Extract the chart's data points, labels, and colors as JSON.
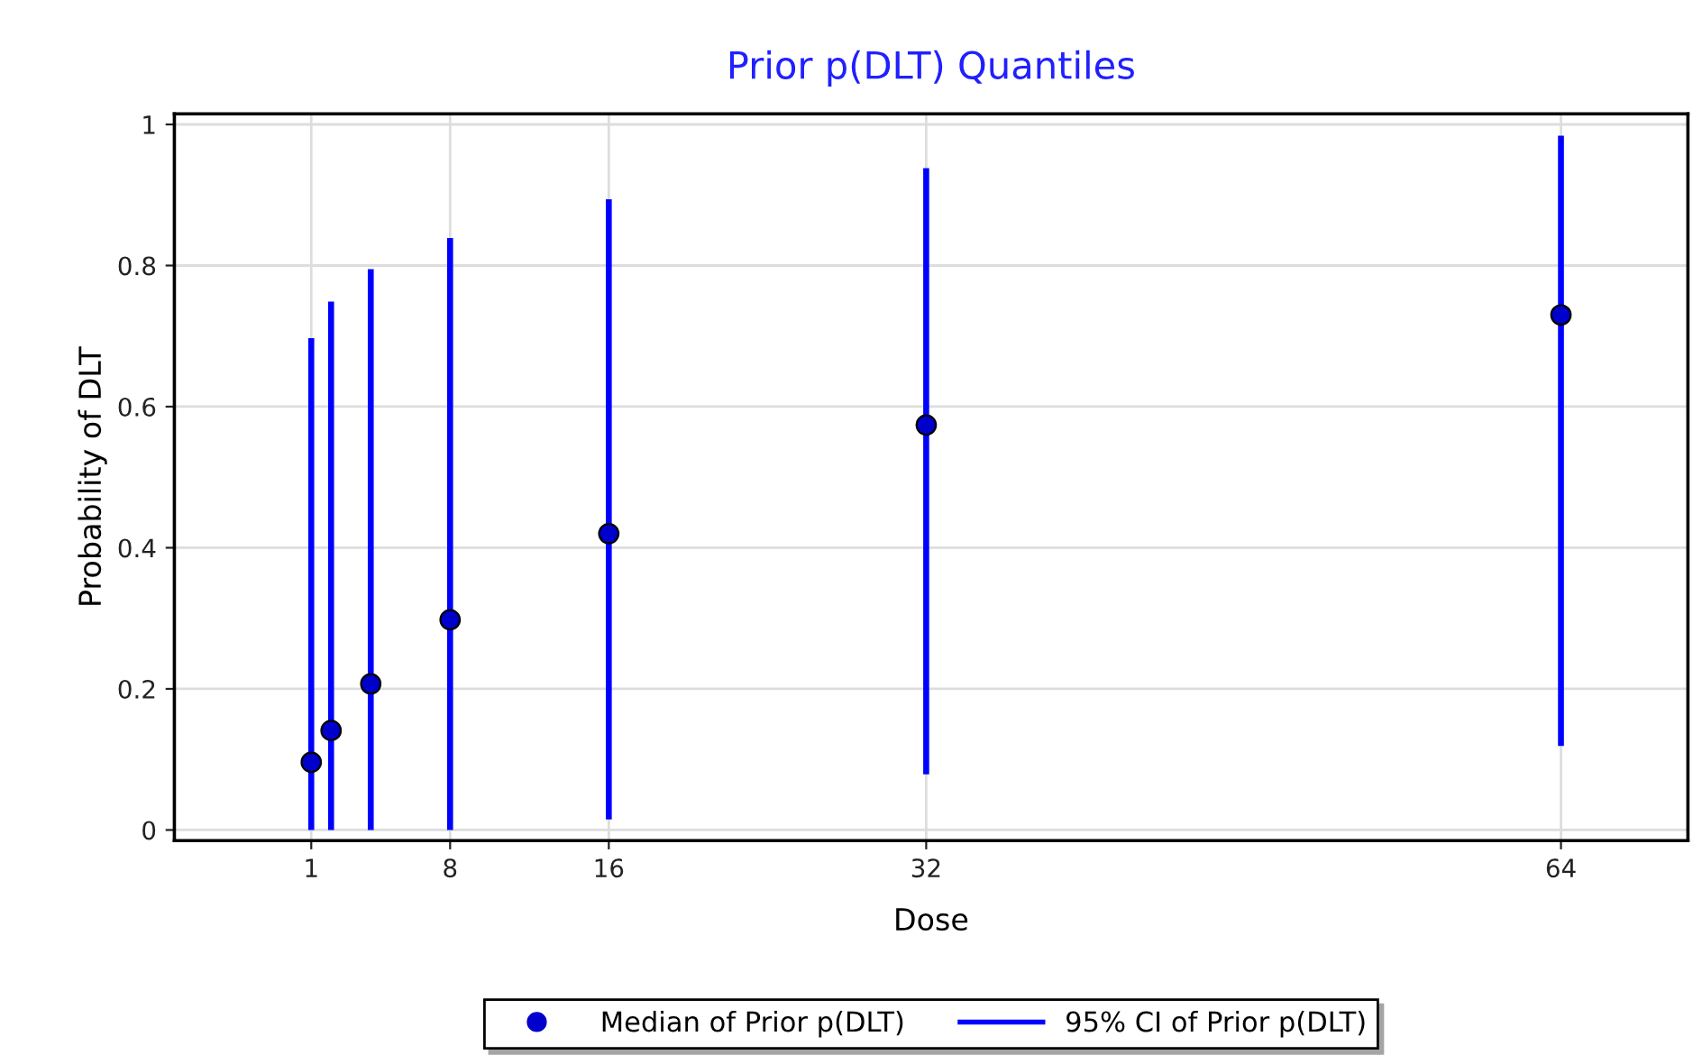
{
  "chart_data": {
    "type": "scatter",
    "title": "Prior p(DLT) Quantiles",
    "xlabel": "Dose",
    "ylabel": "Probability of DLT",
    "xlim": [
      -5.9,
      70.4
    ],
    "xticks": [
      1,
      8,
      16,
      32,
      64
    ],
    "ylim": [
      -0.015,
      1.015
    ],
    "yticks": [
      0,
      0.2,
      0.4,
      0.6,
      0.8,
      1
    ],
    "grid": true,
    "legend": "bottom",
    "series": [
      {
        "name": "95% CI of Prior p(DLT)",
        "type": "bar",
        "color": "#0000ff",
        "x": [
          1,
          2,
          4,
          8,
          16,
          32,
          64
        ],
        "base": [
          0,
          0,
          0,
          0,
          0.015,
          0.079,
          0.119
        ],
        "values": [
          0.697,
          0.749,
          0.795,
          0.839,
          0.879,
          0.859,
          0.865
        ]
      },
      {
        "name": "Median of Prior p(DLT)",
        "color": "#0000cc",
        "marker": "circle",
        "x": [
          1,
          2,
          4,
          8,
          16,
          32,
          64
        ],
        "values": [
          0.096,
          0.141,
          0.207,
          0.298,
          0.42,
          0.574,
          0.73
        ]
      }
    ]
  }
}
